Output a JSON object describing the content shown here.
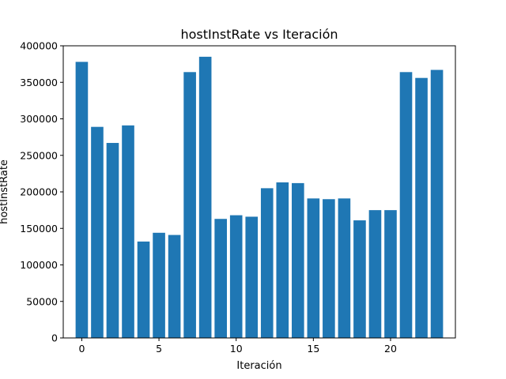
{
  "chart_data": {
    "type": "bar",
    "title": "hostInstRate vs Iteración",
    "xlabel": "Iteración",
    "ylabel": "hostInstRate",
    "x": [
      0,
      1,
      2,
      3,
      4,
      5,
      6,
      7,
      8,
      9,
      10,
      11,
      12,
      13,
      14,
      15,
      16,
      17,
      18,
      19,
      20,
      21,
      22,
      23
    ],
    "values": [
      378000,
      289000,
      267000,
      291000,
      132000,
      144000,
      141000,
      364000,
      385000,
      163000,
      168000,
      166000,
      205000,
      213000,
      212000,
      191000,
      190000,
      191000,
      161000,
      175000,
      175000,
      364000,
      356000,
      367000
    ],
    "xlim": [
      -1.2,
      24.2
    ],
    "ylim": [
      0,
      400000
    ],
    "xticks": [
      0,
      5,
      10,
      15,
      20
    ],
    "yticks": [
      0,
      50000,
      100000,
      150000,
      200000,
      250000,
      300000,
      350000,
      400000
    ],
    "bar_color": "#1f77b4",
    "grid": false,
    "legend": "none"
  }
}
